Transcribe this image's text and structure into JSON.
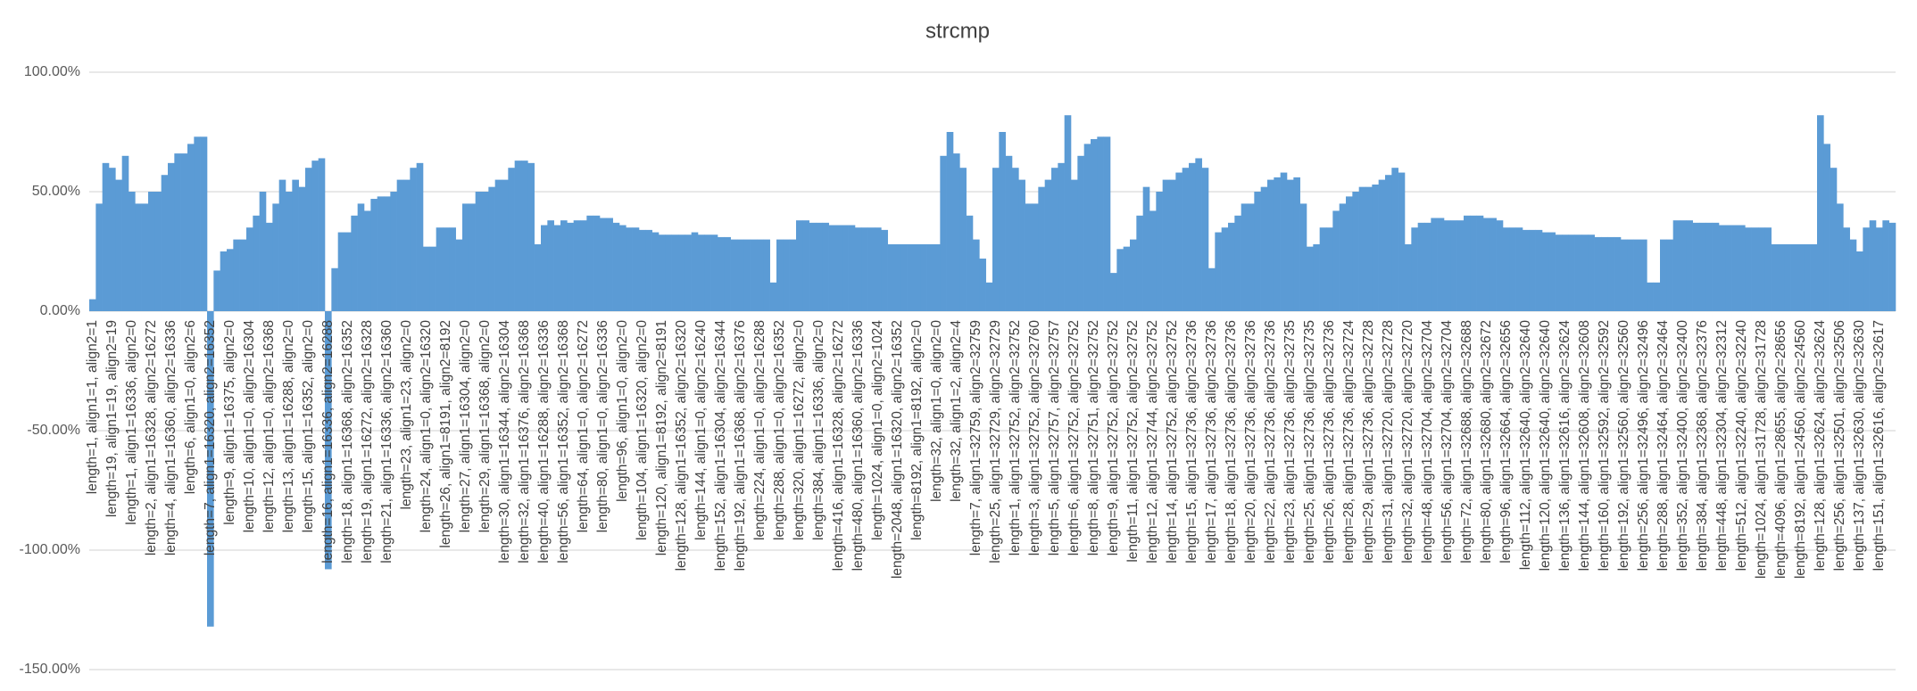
{
  "chart_data": {
    "type": "bar",
    "title": "strcmp",
    "color": "#5b9bd5",
    "grid": true,
    "ylim": [
      -150,
      100
    ],
    "yticks": [
      {
        "value": 100,
        "label": "100.00%"
      },
      {
        "value": 50,
        "label": "50.00%"
      },
      {
        "value": 0,
        "label": "0.00%"
      },
      {
        "value": -50,
        "label": "-50.00%"
      },
      {
        "value": -100,
        "label": "-100.00%"
      },
      {
        "value": -150,
        "label": "-150.00%"
      }
    ],
    "categories": [
      "length=1, align1=1, align2=1",
      null,
      null,
      "length=19, align1=19, align2=19",
      null,
      null,
      "length=1, align1=16336, align2=0",
      null,
      null,
      "length=2, align1=16328, align2=16272",
      null,
      null,
      "length=4, align1=16360, align2=16336",
      null,
      null,
      "length=6, align1=0, align2=6",
      null,
      null,
      "length=7, align1=16320, align2=16352",
      null,
      null,
      "length=9, align1=16375, align2=0",
      null,
      null,
      "length=10, align1=0, align2=16304",
      null,
      null,
      "length=12, align1=0, align2=16368",
      null,
      null,
      "length=13, align1=16288, align2=0",
      null,
      null,
      "length=15, align1=16352, align2=0",
      null,
      null,
      "length=16, align1=16336, align2=16288",
      null,
      null,
      "length=18, align1=16368, align2=16352",
      null,
      null,
      "length=19, align1=16272, align2=16328",
      null,
      null,
      "length=21, align1=16336, align2=16360",
      null,
      null,
      "length=23, align1=23, align2=0",
      null,
      null,
      "length=24, align1=0, align2=16320",
      null,
      null,
      "length=26, align1=8191, align2=8192",
      null,
      null,
      "length=27, align1=16304, align2=0",
      null,
      null,
      "length=29, align1=16368, align2=0",
      null,
      null,
      "length=30, align1=16344, align2=16304",
      null,
      null,
      "length=32, align1=16376, align2=16368",
      null,
      null,
      "length=40, align1=16288, align2=16336",
      null,
      null,
      "length=56, align1=16352, align2=16368",
      null,
      null,
      "length=64, align1=0, align2=16272",
      null,
      null,
      "length=80, align1=0, align2=16336",
      null,
      null,
      "length=96, align1=0, align2=0",
      null,
      null,
      "length=104, align1=16320, align2=0",
      null,
      null,
      "length=120, align1=8192, align2=8191",
      null,
      null,
      "length=128, align1=16352, align2=16320",
      null,
      null,
      "length=144, align1=0, align2=16240",
      null,
      null,
      "length=152, align1=16304, align2=16344",
      null,
      null,
      "length=192, align1=16368, align2=16376",
      null,
      null,
      "length=224, align1=0, align2=16288",
      null,
      null,
      "length=288, align1=0, align2=16352",
      null,
      null,
      "length=320, align1=16272, align2=0",
      null,
      null,
      "length=384, align1=16336, align2=0",
      null,
      null,
      "length=416, align1=16328, align2=16272",
      null,
      null,
      "length=480, align1=16360, align2=16336",
      null,
      null,
      "length=1024, align1=0, align2=1024",
      null,
      null,
      "length=2048, align1=16320, align2=16352",
      null,
      null,
      "length=8192, align1=8192, align2=0",
      null,
      null,
      "length=32, align1=0, align2=0",
      null,
      null,
      "length=32, align1=2, align2=4",
      null,
      null,
      "length=7, align1=32759, align2=32759",
      null,
      null,
      "length=25, align1=32729, align2=32729",
      null,
      null,
      "length=1, align1=32752, align2=32752",
      null,
      null,
      "length=3, align1=32752, align2=32760",
      null,
      null,
      "length=5, align1=32757, align2=32757",
      null,
      null,
      "length=6, align1=32752, align2=32752",
      null,
      null,
      "length=8, align1=32751, align2=32752",
      null,
      null,
      "length=9, align1=32752, align2=32752",
      null,
      null,
      "length=11, align1=32752, align2=32752",
      null,
      null,
      "length=12, align1=32744, align2=32752",
      null,
      null,
      "length=14, align1=32752, align2=32752",
      null,
      null,
      "length=15, align1=32736, align2=32736",
      null,
      null,
      "length=17, align1=32736, align2=32736",
      null,
      null,
      "length=18, align1=32736, align2=32736",
      null,
      null,
      "length=20, align1=32736, align2=32736",
      null,
      null,
      "length=22, align1=32736, align2=32736",
      null,
      null,
      "length=23, align1=32736, align2=32735",
      null,
      null,
      "length=25, align1=32736, align2=32735",
      null,
      null,
      "length=26, align1=32736, align2=32736",
      null,
      null,
      "length=28, align1=32736, align2=32724",
      null,
      null,
      "length=29, align1=32736, align2=32728",
      null,
      null,
      "length=31, align1=32720, align2=32728",
      null,
      null,
      "length=32, align1=32720, align2=32720",
      null,
      null,
      "length=48, align1=32704, align2=32704",
      null,
      null,
      "length=56, align1=32704, align2=32704",
      null,
      null,
      "length=72, align1=32688, align2=32688",
      null,
      null,
      "length=80, align1=32680, align2=32672",
      null,
      null,
      "length=96, align1=32664, align2=32656",
      null,
      null,
      "length=112, align1=32640, align2=32640",
      null,
      null,
      "length=120, align1=32640, align2=32640",
      null,
      null,
      "length=136, align1=32616, align2=32624",
      null,
      null,
      "length=144, align1=32608, align2=32608",
      null,
      null,
      "length=160, align1=32592, align2=32592",
      null,
      null,
      "length=192, align1=32560, align2=32560",
      null,
      null,
      "length=256, align1=32496, align2=32496",
      null,
      null,
      "length=288, align1=32464, align2=32464",
      null,
      null,
      "length=352, align1=32400, align2=32400",
      null,
      null,
      "length=384, align1=32368, align2=32376",
      null,
      null,
      "length=448, align1=32304, align2=32312",
      null,
      null,
      "length=512, align1=32240, align2=32240",
      null,
      null,
      "length=1024, align1=31728, align2=31728",
      null,
      null,
      "length=4096, align1=28655, align2=28656",
      null,
      null,
      "length=8192, align1=24560, align2=24560",
      null,
      null,
      "length=128, align1=32624, align2=32624",
      null,
      null,
      "length=256, align1=32501, align2=32506",
      null,
      null,
      "length=137, align1=32630, align2=32630",
      null,
      null,
      "length=151, align1=32616, align2=32617",
      null,
      null
    ],
    "values": [
      5,
      45,
      62,
      60,
      55,
      65,
      50,
      45,
      45,
      50,
      50,
      57,
      62,
      66,
      66,
      70,
      73,
      73,
      -132,
      17,
      25,
      26,
      30,
      30,
      35,
      40,
      50,
      37,
      45,
      55,
      50,
      55,
      52,
      60,
      63,
      64,
      -108,
      18,
      33,
      33,
      40,
      45,
      42,
      47,
      48,
      48,
      50,
      55,
      55,
      60,
      62,
      27,
      27,
      35,
      35,
      35,
      30,
      45,
      45,
      50,
      50,
      52,
      55,
      55,
      60,
      63,
      63,
      62,
      28,
      36,
      38,
      36,
      38,
      37,
      38,
      38,
      40,
      40,
      39,
      39,
      37,
      36,
      35,
      35,
      34,
      34,
      33,
      32,
      32,
      32,
      32,
      32,
      33,
      32,
      32,
      32,
      31,
      31,
      30,
      30,
      30,
      30,
      30,
      30,
      12,
      30,
      30,
      30,
      38,
      38,
      37,
      37,
      37,
      36,
      36,
      36,
      36,
      35,
      35,
      35,
      35,
      34,
      28,
      28,
      28,
      28,
      28,
      28,
      28,
      28,
      65,
      75,
      66,
      60,
      40,
      30,
      22,
      12,
      60,
      75,
      65,
      60,
      55,
      45,
      45,
      52,
      55,
      60,
      62,
      82,
      55,
      65,
      70,
      72,
      73,
      73,
      16,
      26,
      27,
      30,
      40,
      52,
      42,
      50,
      55,
      55,
      58,
      60,
      62,
      64,
      60,
      18,
      33,
      35,
      37,
      40,
      45,
      45,
      50,
      52,
      55,
      56,
      58,
      55,
      56,
      45,
      27,
      28,
      35,
      35,
      42,
      45,
      48,
      50,
      52,
      52,
      53,
      55,
      57,
      60,
      58,
      28,
      35,
      37,
      37,
      39,
      39,
      38,
      38,
      38,
      40,
      40,
      40,
      39,
      39,
      38,
      35,
      35,
      35,
      34,
      34,
      34,
      33,
      33,
      32,
      32,
      32,
      32,
      32,
      32,
      31,
      31,
      31,
      31,
      30,
      30,
      30,
      30,
      12,
      12,
      30,
      30,
      38,
      38,
      38,
      37,
      37,
      37,
      37,
      36,
      36,
      36,
      36,
      35,
      35,
      35,
      35,
      28,
      28,
      28,
      28,
      28,
      28,
      28,
      82,
      70,
      60,
      45,
      35,
      30,
      25,
      35,
      38,
      35,
      38,
      37
    ]
  }
}
